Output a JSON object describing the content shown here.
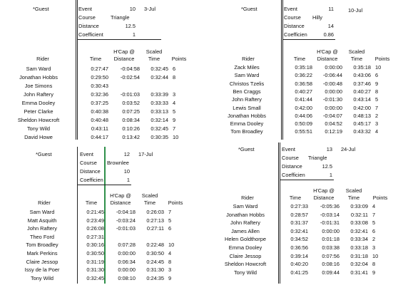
{
  "panels": [
    {
      "id": "p1",
      "guest": "*Guest",
      "event_label": "Event",
      "event_value": "10",
      "date": "3-Jul",
      "course_label": "Course",
      "course_value": "Triangle",
      "distance_label": "Distance",
      "distance_value": "12.5",
      "coef_label": "Coefficient",
      "coef_value": "1",
      "headers": {
        "rider": "Rider",
        "time": "Time",
        "hcap1": "H'Cap @",
        "hcap2": "Distance",
        "scaled1": "Scaled",
        "scaled2": "Time",
        "points": "Points"
      },
      "rows": [
        [
          "Sam Ward",
          "0:27:47",
          "-0:04:58",
          "0:32:45",
          "6"
        ],
        [
          "Jonathan Hobbs",
          "0:29:50",
          "-0:02:54",
          "0:32:44",
          "8"
        ],
        [
          "Joe Simons",
          "0:30:43",
          "",
          "",
          ""
        ],
        [
          "John Raftery",
          "0:32:36",
          "-0:01:03",
          "0:33:39",
          "3"
        ],
        [
          "Emma Dooley",
          "0:37:25",
          "0:03:52",
          "0:33:33",
          "4"
        ],
        [
          "Peter Clarke",
          "0:40:38",
          "0:07:25",
          "0:33:13",
          "5"
        ],
        [
          "Sheldon Howcroft",
          "0:40:48",
          "0:08:34",
          "0:32:14",
          "9"
        ],
        [
          "Tony Wild",
          "0:43:11",
          "0:10:26",
          "0:32:45",
          "7"
        ],
        [
          "David Howe",
          "0:44:17",
          "0:13:42",
          "0:30:35",
          "10"
        ]
      ]
    },
    {
      "id": "p2",
      "guest": "*Guest",
      "event_label": "Event",
      "event_value": "11",
      "date": "10-Jul",
      "course_label": "Course",
      "course_value": "Hilly",
      "distance_label": "Distance",
      "distance_value": "14",
      "coef_label": "Coefficien",
      "coef_value": "0.86",
      "headers": {
        "rider": "Rider",
        "time": "Time",
        "hcap1": "H'Cap @",
        "hcap2": "Distance",
        "scaled1": "Scaled",
        "scaled2": "Time",
        "points": "Points"
      },
      "rows": [
        [
          "Zack Miles",
          "0:35:18",
          "0:00:00",
          "0:35:18",
          "10"
        ],
        [
          "Sam Ward",
          "0:36:22",
          "-0:06:44",
          "0:43:06",
          "6"
        ],
        [
          "Christos Tzelis",
          "0:36:58",
          "-0:00:48",
          "0:37:46",
          "9"
        ],
        [
          "Ben Craggs",
          "0:40:27",
          "0:00:00",
          "0:40:27",
          "8"
        ],
        [
          "John Raftery",
          "0:41:44",
          "-0:01:30",
          "0:43:14",
          "5"
        ],
        [
          "Lewis Small",
          "0:42:00",
          "0:00:00",
          "0:42:00",
          "7"
        ],
        [
          "Jonathan Hobbs",
          "0:44:06",
          "-0:04:07",
          "0:48:13",
          "2"
        ],
        [
          "Emma Dooley",
          "0:50:09",
          "0:04:52",
          "0:45:17",
          "3"
        ],
        [
          "Tom Broadley",
          "0:55:51",
          "0:12:19",
          "0:43:32",
          "4"
        ]
      ]
    },
    {
      "id": "p3",
      "guest": "*Guest",
      "event_label": "Event",
      "event_value": "12",
      "date": "17-Jul",
      "course_label": "Course",
      "course_value": "Brownlee",
      "distance_label": "Distance",
      "distance_value": "10",
      "coef_label": "Coefficien",
      "coef_value": "1",
      "headers": {
        "rider": "Rider",
        "time": "Time",
        "hcap1": "H'Cap @",
        "hcap2": "Distance",
        "scaled1": "Scaled",
        "scaled2": "Time",
        "points": "Points"
      },
      "rows": [
        [
          "Sam Ward",
          "0:21:45",
          "-0:04:18",
          "0:26:03",
          "7"
        ],
        [
          "Matt Asquith",
          "0:23:49",
          "-0:03:24",
          "0:27:13",
          "5"
        ],
        [
          "John Raftery",
          "0:26:08",
          "-0:01:03",
          "0:27:11",
          "6"
        ],
        [
          "Theo Ford",
          "0:27:31",
          "",
          "",
          ""
        ],
        [
          "Tom Broadley",
          "0:30:16",
          "0:07:28",
          "0:22:48",
          "10"
        ],
        [
          "Mark Perkins",
          "0:30:50",
          "0:00:00",
          "0:30:50",
          "4"
        ],
        [
          "Claire Jessop",
          "0:31:19",
          "0:06:34",
          "0:24:45",
          "8"
        ],
        [
          "Issy de la Poer",
          "0:31:30",
          "0:00:00",
          "0:31:30",
          "3"
        ],
        [
          "Tony Wild",
          "0:32:45",
          "0:08:10",
          "0:24:35",
          "9"
        ]
      ]
    },
    {
      "id": "p4",
      "guest": "*Guest",
      "event_label": "Event",
      "event_value": "13",
      "date": "24-Jul",
      "course_label": "Course",
      "course_value": "Triangle",
      "distance_label": "Distance",
      "distance_value": "12.5",
      "coef_label": "Coefficien",
      "coef_value": "1",
      "headers": {
        "rider": "Rider",
        "time": "Time",
        "hcap1": "H'Cap @",
        "hcap2": "Distance",
        "scaled1": "Scaled",
        "scaled2": "Time",
        "points": "Points"
      },
      "rows": [
        [
          "Sam Ward",
          "0:27:33",
          "-0:05:36",
          "0:33:09",
          "4"
        ],
        [
          "Jonathan Hobbs",
          "0:28:57",
          "-0:03:14",
          "0:32:11",
          "7"
        ],
        [
          "John Raftery",
          "0:31:37",
          "-0:01:31",
          "0:33:08",
          "5"
        ],
        [
          "James Allen",
          "0:32:41",
          "0:00:00",
          "0:32:41",
          "6"
        ],
        [
          "Helen Goldthorpe",
          "0:34:52",
          "0:01:18",
          "0:33:34",
          "2"
        ],
        [
          "Emma Dooley",
          "0:36:56",
          "0:03:38",
          "0:33:18",
          "3"
        ],
        [
          "Claire Jessop",
          "0:39:14",
          "0:07:56",
          "0:31:18",
          "10"
        ],
        [
          "Sheldon Howcroft",
          "0:40:20",
          "0:08:16",
          "0:32:04",
          "8"
        ],
        [
          "Tony Wild",
          "0:41:25",
          "0:09:44",
          "0:31:41",
          "9"
        ]
      ]
    }
  ]
}
